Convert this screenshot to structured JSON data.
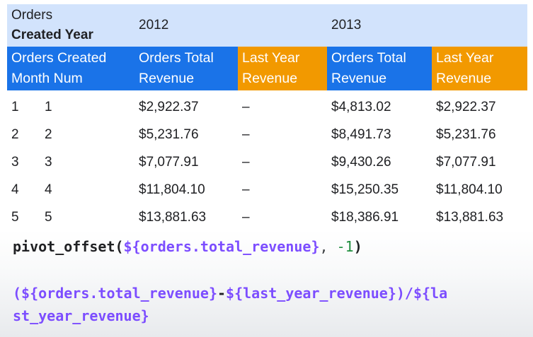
{
  "header_row1": {
    "dimension_label_line1": "Orders",
    "dimension_label_line2": "Created Year",
    "year_2012": "2012",
    "year_2013": "2013"
  },
  "header_row2": {
    "row_dim_line1": "Orders Created",
    "row_dim_line2": "Month Num",
    "total_revenue_line1": "Orders Total",
    "total_revenue_line2": "Revenue",
    "last_year_line1": "Last Year",
    "last_year_line2": "Revenue"
  },
  "colors": {
    "header_blue": "#1a73e8",
    "header_orange": "#f29900",
    "pivot_header_bg": "#d2e3fc"
  },
  "rows": [
    {
      "index": "1",
      "month": "1",
      "rev_2012": "$2,922.37",
      "ly_2012": "–",
      "rev_2013": "$4,813.02",
      "ly_2013": "$2,922.37"
    },
    {
      "index": "2",
      "month": "2",
      "rev_2012": "$5,231.76",
      "ly_2012": "–",
      "rev_2013": "$8,491.73",
      "ly_2013": "$5,231.76"
    },
    {
      "index": "3",
      "month": "3",
      "rev_2012": "$7,077.91",
      "ly_2012": "–",
      "rev_2013": "$9,430.26",
      "ly_2013": "$7,077.91"
    },
    {
      "index": "4",
      "month": "4",
      "rev_2012": "$11,804.10",
      "ly_2012": "–",
      "rev_2013": "$15,250.35",
      "ly_2013": "$11,804.10"
    },
    {
      "index": "5",
      "month": "5",
      "rev_2012": "$13,881.63",
      "ly_2012": "–",
      "rev_2013": "$18,386.91",
      "ly_2013": "$13,881.63"
    }
  ],
  "code": {
    "l1_fn": "pivot_offset(",
    "l1_ref": "${orders.total_revenue}",
    "l1_sep": ", ",
    "l1_num": "-1",
    "l1_close": ")",
    "l2_open": "(",
    "l2_ref1": "${orders.total_revenue}",
    "l2_op": "-",
    "l2_ref2": "${last_year_revenue}",
    "l2_div": ")/",
    "l2_ref3a": "${la",
    "l3_ref3b": "st_year_revenue}"
  }
}
